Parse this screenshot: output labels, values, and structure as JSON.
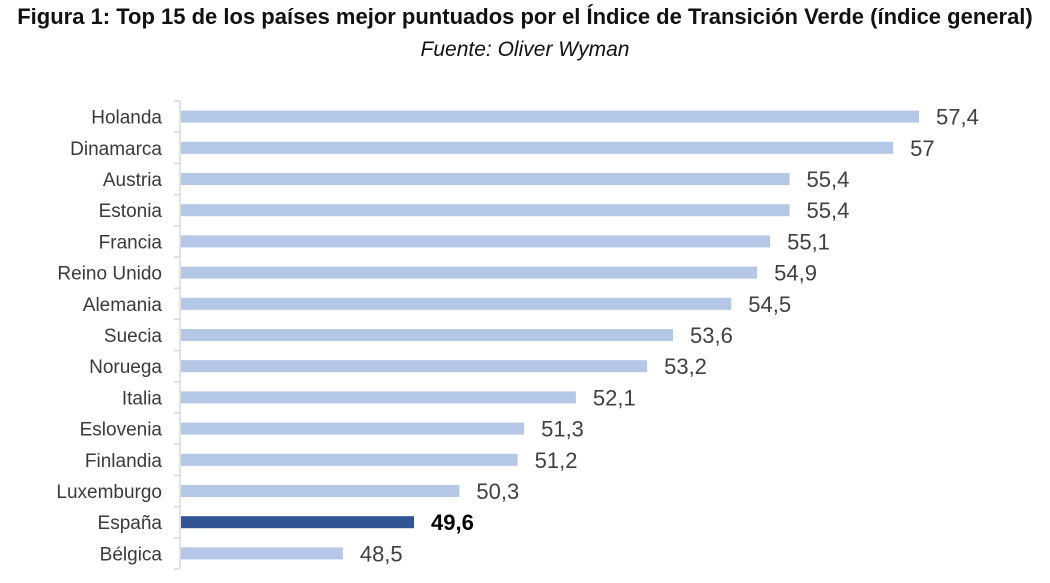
{
  "title": "Figura 1: Top 15 de los países mejor puntuados por el Índice de Transición Verde (índice general)",
  "subtitle": "Fuente: Oliver Wyman",
  "colors": {
    "bar": "#b4c7e7",
    "bar_highlight": "#2f5597",
    "axis": "#d9d9d9"
  },
  "chart_data": {
    "type": "bar",
    "orientation": "horizontal",
    "categories": [
      "Holanda",
      "Dinamarca",
      "Austria",
      "Estonia",
      "Francia",
      "Reino Unido",
      "Alemania",
      "Suecia",
      "Noruega",
      "Italia",
      "Eslovenia",
      "Finlandia",
      "Luxemburgo",
      "España",
      "Bélgica"
    ],
    "values": [
      57.4,
      57,
      55.4,
      55.4,
      55.1,
      54.9,
      54.5,
      53.6,
      53.2,
      52.1,
      51.3,
      51.2,
      50.3,
      49.6,
      48.5
    ],
    "value_labels": [
      "57,4",
      "57",
      "55,4",
      "55,4",
      "55,1",
      "54,9",
      "54,5",
      "53,6",
      "53,2",
      "52,1",
      "51,3",
      "51,2",
      "50,3",
      "49,6",
      "48,5"
    ],
    "highlight": "España",
    "xlim": [
      46,
      58
    ],
    "grid": false,
    "legend": "none"
  }
}
